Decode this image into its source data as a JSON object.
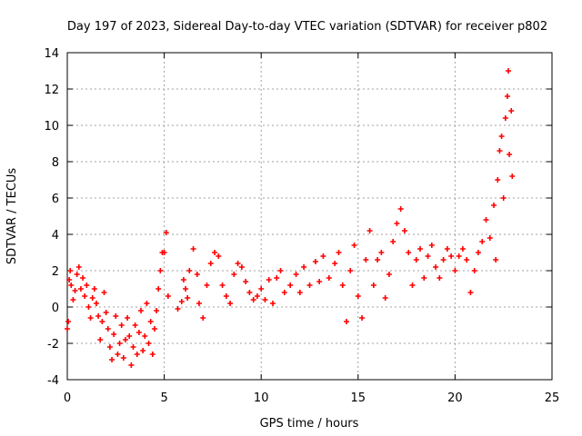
{
  "chart_data": {
    "type": "scatter",
    "title": "Day 197 of 2023, Sidereal Day-to-day VTEC variation (SDTVAR) for receiver p802",
    "xlabel": "GPS time / hours",
    "ylabel": "SDTVAR / TECUs",
    "xlim": [
      0,
      25
    ],
    "ylim": [
      -4,
      14
    ],
    "xticks": [
      0,
      5,
      10,
      15,
      20,
      25
    ],
    "yticks": [
      -4,
      -2,
      0,
      2,
      4,
      6,
      8,
      10,
      12,
      14
    ],
    "grid": true,
    "marker": "+",
    "series": [
      {
        "color": "#ff0000",
        "points": [
          [
            0.0,
            -1.2
          ],
          [
            0.05,
            -0.8
          ],
          [
            0.1,
            1.5
          ],
          [
            0.15,
            2.0
          ],
          [
            0.2,
            1.2
          ],
          [
            0.3,
            0.4
          ],
          [
            0.4,
            0.9
          ],
          [
            0.5,
            1.8
          ],
          [
            0.6,
            2.2
          ],
          [
            0.7,
            1.0
          ],
          [
            0.8,
            1.6
          ],
          [
            0.9,
            0.6
          ],
          [
            1.0,
            1.2
          ],
          [
            1.1,
            0.0
          ],
          [
            1.2,
            -0.6
          ],
          [
            1.3,
            0.5
          ],
          [
            1.4,
            1.0
          ],
          [
            1.5,
            0.2
          ],
          [
            1.6,
            -0.5
          ],
          [
            1.7,
            -1.8
          ],
          [
            1.8,
            -0.8
          ],
          [
            1.9,
            0.8
          ],
          [
            2.0,
            -0.3
          ],
          [
            2.1,
            -1.2
          ],
          [
            2.2,
            -2.2
          ],
          [
            2.3,
            -2.9
          ],
          [
            2.4,
            -1.5
          ],
          [
            2.5,
            -0.5
          ],
          [
            2.6,
            -2.6
          ],
          [
            2.7,
            -2.0
          ],
          [
            2.8,
            -1.0
          ],
          [
            2.9,
            -2.8
          ],
          [
            3.0,
            -1.8
          ],
          [
            3.1,
            -0.6
          ],
          [
            3.2,
            -1.6
          ],
          [
            3.3,
            -3.2
          ],
          [
            3.4,
            -2.2
          ],
          [
            3.5,
            -1.0
          ],
          [
            3.6,
            -2.6
          ],
          [
            3.7,
            -1.4
          ],
          [
            3.8,
            -0.2
          ],
          [
            3.9,
            -2.4
          ],
          [
            4.0,
            -1.6
          ],
          [
            4.1,
            0.2
          ],
          [
            4.2,
            -2.0
          ],
          [
            4.3,
            -0.8
          ],
          [
            4.4,
            -2.6
          ],
          [
            4.5,
            -1.2
          ],
          [
            4.6,
            -0.2
          ],
          [
            4.7,
            1.0
          ],
          [
            4.8,
            2.0
          ],
          [
            4.9,
            3.0
          ],
          [
            5.0,
            3.0
          ],
          [
            5.1,
            4.1
          ],
          [
            5.2,
            0.6
          ],
          [
            5.7,
            -0.1
          ],
          [
            5.9,
            0.3
          ],
          [
            6.0,
            1.5
          ],
          [
            6.1,
            1.0
          ],
          [
            6.2,
            0.5
          ],
          [
            6.3,
            2.0
          ],
          [
            6.5,
            3.2
          ],
          [
            6.7,
            1.8
          ],
          [
            6.8,
            0.2
          ],
          [
            7.0,
            -0.6
          ],
          [
            7.2,
            1.2
          ],
          [
            7.4,
            2.4
          ],
          [
            7.6,
            3.0
          ],
          [
            7.8,
            2.8
          ],
          [
            8.0,
            1.2
          ],
          [
            8.2,
            0.6
          ],
          [
            8.4,
            0.2
          ],
          [
            8.6,
            1.8
          ],
          [
            8.8,
            2.4
          ],
          [
            9.0,
            2.2
          ],
          [
            9.2,
            1.4
          ],
          [
            9.4,
            0.8
          ],
          [
            9.6,
            0.4
          ],
          [
            9.8,
            0.6
          ],
          [
            10.0,
            1.0
          ],
          [
            10.2,
            0.4
          ],
          [
            10.4,
            1.5
          ],
          [
            10.6,
            0.2
          ],
          [
            10.8,
            1.6
          ],
          [
            11.0,
            2.0
          ],
          [
            11.2,
            0.8
          ],
          [
            11.5,
            1.2
          ],
          [
            11.8,
            1.8
          ],
          [
            12.0,
            0.8
          ],
          [
            12.2,
            2.2
          ],
          [
            12.5,
            1.2
          ],
          [
            12.8,
            2.5
          ],
          [
            13.0,
            1.4
          ],
          [
            13.2,
            2.8
          ],
          [
            13.5,
            1.6
          ],
          [
            13.8,
            2.4
          ],
          [
            14.0,
            3.0
          ],
          [
            14.2,
            1.2
          ],
          [
            14.4,
            -0.8
          ],
          [
            14.6,
            2.0
          ],
          [
            14.8,
            3.4
          ],
          [
            15.0,
            0.6
          ],
          [
            15.2,
            -0.6
          ],
          [
            15.4,
            2.6
          ],
          [
            15.6,
            4.2
          ],
          [
            15.8,
            1.2
          ],
          [
            16.0,
            2.6
          ],
          [
            16.2,
            3.0
          ],
          [
            16.4,
            0.5
          ],
          [
            16.6,
            1.8
          ],
          [
            16.8,
            3.6
          ],
          [
            17.0,
            4.6
          ],
          [
            17.2,
            5.4
          ],
          [
            17.4,
            4.2
          ],
          [
            17.6,
            3.0
          ],
          [
            17.8,
            1.2
          ],
          [
            18.0,
            2.6
          ],
          [
            18.2,
            3.2
          ],
          [
            18.4,
            1.6
          ],
          [
            18.6,
            2.8
          ],
          [
            18.8,
            3.4
          ],
          [
            19.0,
            2.2
          ],
          [
            19.2,
            1.6
          ],
          [
            19.4,
            2.6
          ],
          [
            19.6,
            3.2
          ],
          [
            19.8,
            2.8
          ],
          [
            20.0,
            2.0
          ],
          [
            20.2,
            2.8
          ],
          [
            20.4,
            3.2
          ],
          [
            20.6,
            2.6
          ],
          [
            20.8,
            0.8
          ],
          [
            21.0,
            2.0
          ],
          [
            21.2,
            3.0
          ],
          [
            21.4,
            3.6
          ],
          [
            21.6,
            4.8
          ],
          [
            21.8,
            3.8
          ],
          [
            22.0,
            5.6
          ],
          [
            22.1,
            2.6
          ],
          [
            22.2,
            7.0
          ],
          [
            22.3,
            8.6
          ],
          [
            22.4,
            9.4
          ],
          [
            22.5,
            6.0
          ],
          [
            22.6,
            10.4
          ],
          [
            22.7,
            11.6
          ],
          [
            22.75,
            13.0
          ],
          [
            22.8,
            8.4
          ],
          [
            22.9,
            10.8
          ],
          [
            22.95,
            7.2
          ]
        ]
      }
    ]
  }
}
